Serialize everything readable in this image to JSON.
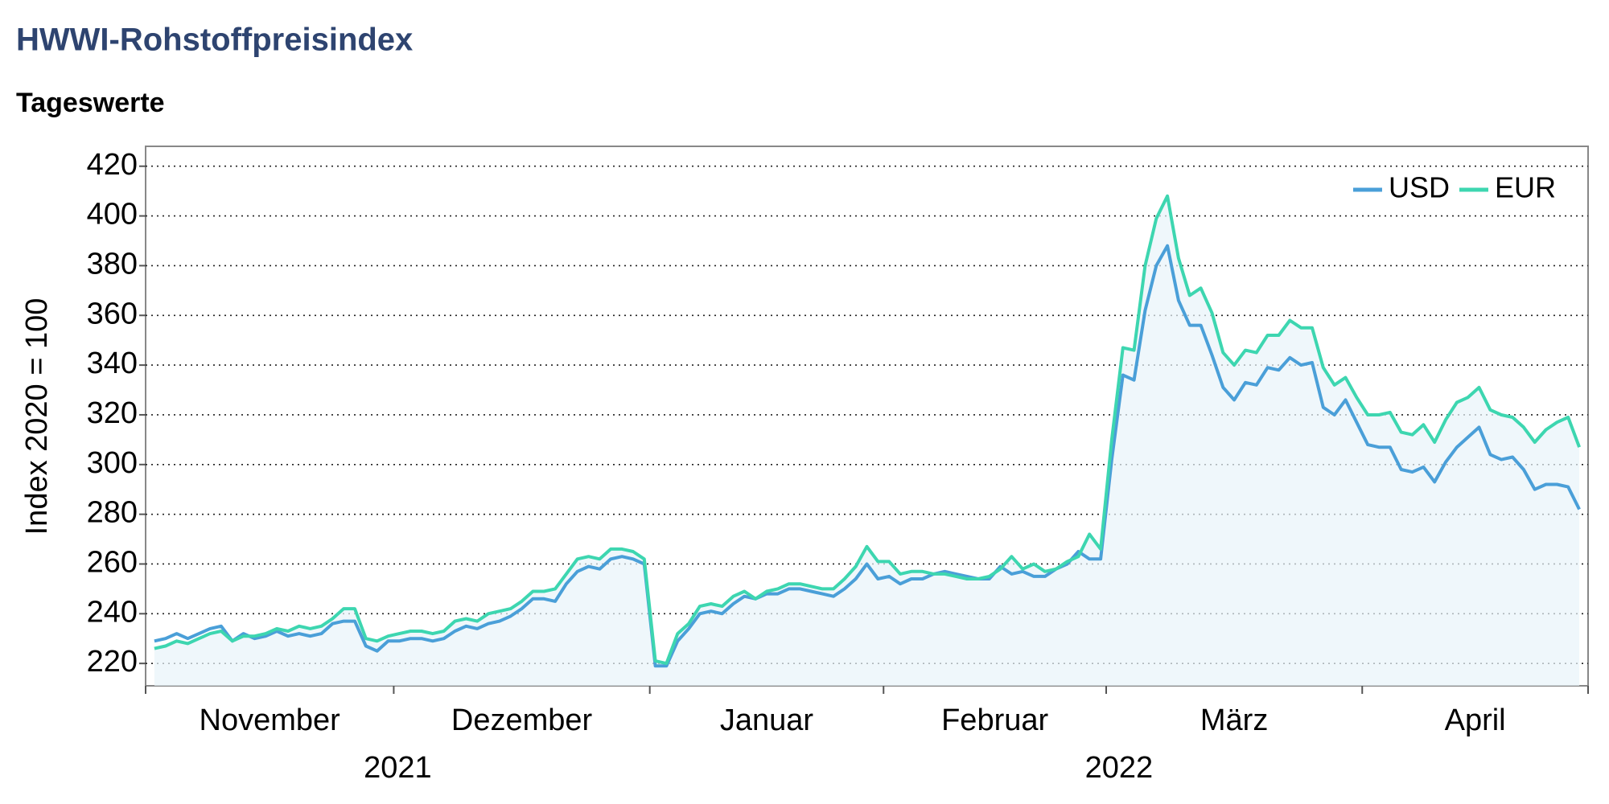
{
  "chart_data": {
    "type": "line",
    "title": "HWWI-Rohstoffpreisindex",
    "subtitle": "Tageswerte",
    "y_label": "Index 2020 = 100",
    "x_groups": [
      {
        "label": "2021",
        "months": [
          "November",
          "Dezember"
        ]
      },
      {
        "label": "2022",
        "months": [
          "Januar",
          "Februar",
          "März",
          "April"
        ]
      }
    ],
    "series": [
      {
        "name": "USD",
        "color": "#4a9fd8",
        "values": [
          [
            229,
            230,
            232,
            230,
            232,
            234,
            235,
            229,
            232,
            230,
            231,
            233,
            231,
            232,
            231,
            232,
            236,
            237,
            237,
            227,
            225,
            229
          ],
          [
            229,
            230,
            230,
            229,
            230,
            233,
            235,
            234,
            236,
            237,
            239,
            242,
            246,
            246,
            245,
            252,
            257,
            259,
            258,
            262,
            263,
            262,
            260
          ],
          [
            219,
            219,
            229,
            234,
            240,
            241,
            240,
            244,
            247,
            246,
            248,
            248,
            250,
            250,
            249,
            248,
            247,
            250,
            254,
            260,
            254
          ],
          [
            255,
            252,
            254,
            254,
            256,
            257,
            256,
            255,
            254,
            254,
            259,
            256,
            257,
            255,
            255,
            258,
            260,
            265,
            262,
            262
          ],
          [
            302,
            336,
            334,
            362,
            380,
            388,
            366,
            356,
            356,
            344,
            331,
            326,
            333,
            332,
            339,
            338,
            343,
            340,
            341,
            323,
            320,
            326,
            317
          ],
          [
            308,
            307,
            307,
            298,
            297,
            299,
            293,
            301,
            307,
            311,
            315,
            304,
            302,
            303,
            298,
            290,
            292,
            292,
            291,
            282
          ]
        ]
      },
      {
        "name": "EUR",
        "color": "#3dd6b0",
        "values": [
          [
            226,
            227,
            229,
            228,
            230,
            232,
            233,
            229,
            231,
            231,
            232,
            234,
            233,
            235,
            234,
            235,
            238,
            242,
            242,
            230,
            229,
            231
          ],
          [
            232,
            233,
            233,
            232,
            233,
            237,
            238,
            237,
            240,
            241,
            242,
            245,
            249,
            249,
            250,
            256,
            262,
            263,
            262,
            266,
            266,
            265,
            262
          ],
          [
            221,
            220,
            232,
            236,
            243,
            244,
            243,
            247,
            249,
            246,
            249,
            250,
            252,
            252,
            251,
            250,
            250,
            254,
            259,
            267,
            261
          ],
          [
            261,
            256,
            257,
            257,
            256,
            256,
            255,
            254,
            254,
            255,
            258,
            263,
            258,
            260,
            257,
            258,
            261,
            263,
            272,
            266
          ],
          [
            310,
            347,
            346,
            380,
            399,
            408,
            383,
            368,
            371,
            361,
            345,
            340,
            346,
            345,
            352,
            352,
            358,
            355,
            355,
            339,
            332,
            335,
            327
          ],
          [
            320,
            320,
            321,
            313,
            312,
            316,
            309,
            318,
            325,
            327,
            331,
            322,
            320,
            319,
            315,
            309,
            314,
            317,
            319,
            307
          ]
        ]
      }
    ],
    "ylim": [
      211,
      428
    ],
    "yticks": [
      220,
      240,
      260,
      280,
      300,
      320,
      340,
      360,
      380,
      400,
      420
    ],
    "grid": true,
    "legend": "upper right"
  }
}
